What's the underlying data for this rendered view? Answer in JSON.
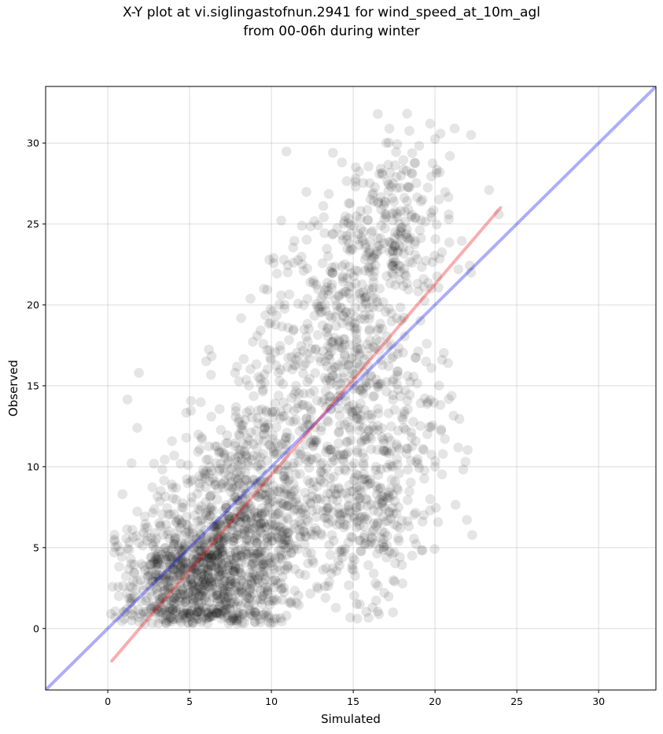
{
  "chart_data": {
    "type": "scatter",
    "title_line1": "X-Y plot at vi.siglingastofnun.2941 for wind_speed_at_10m_agl",
    "title_line2": "from 00-06h during winter",
    "xlabel": "Simulated",
    "ylabel": "Observed",
    "xlim": [
      -3.8,
      33.5
    ],
    "ylim": [
      -3.8,
      33.5
    ],
    "xticks": [
      0,
      5,
      10,
      15,
      20,
      25,
      30
    ],
    "yticks": [
      0,
      5,
      10,
      15,
      20,
      25,
      30
    ],
    "grid": true,
    "point_color": "#000000",
    "point_alpha": 0.1,
    "point_count": 2600,
    "identity_line": {
      "color": "#0000ee",
      "alpha": 0.32,
      "x": [
        -3.8,
        33.5
      ],
      "y": [
        -3.8,
        33.5
      ]
    },
    "fit_line": {
      "color": "#ee0000",
      "alpha": 0.32,
      "x": [
        0.25,
        24.0
      ],
      "y": [
        -2.0,
        26.0
      ]
    },
    "clusters": [
      {
        "cx": 6.0,
        "cy": 2.5,
        "sx": 2.2,
        "sy": 1.8,
        "n": 560
      },
      {
        "cx": 8.0,
        "cy": 6.0,
        "sx": 2.5,
        "sy": 2.5,
        "n": 520
      },
      {
        "cx": 10.0,
        "cy": 10.0,
        "sx": 2.8,
        "sy": 3.5,
        "n": 380
      },
      {
        "cx": 14.0,
        "cy": 18.5,
        "sx": 2.3,
        "sy": 3.5,
        "n": 380
      },
      {
        "cx": 17.5,
        "cy": 25.0,
        "sx": 1.8,
        "sy": 2.8,
        "n": 230
      },
      {
        "cx": 15.5,
        "cy": 6.5,
        "sx": 1.8,
        "sy": 2.6,
        "n": 220
      },
      {
        "cx": 17.5,
        "cy": 12.0,
        "sx": 2.0,
        "sy": 3.0,
        "n": 170
      },
      {
        "cx": 3.0,
        "cy": 3.0,
        "sx": 1.3,
        "sy": 2.0,
        "n": 140
      }
    ],
    "points": [
      {
        "x": 1.8,
        "y": 12.4
      },
      {
        "x": 1.9,
        "y": 15.8
      },
      {
        "x": 0.9,
        "y": 8.3
      },
      {
        "x": 16.5,
        "y": 31.8
      },
      {
        "x": 19.7,
        "y": 31.2
      },
      {
        "x": 21.2,
        "y": 30.9
      },
      {
        "x": 22.2,
        "y": 30.5
      },
      {
        "x": 20.8,
        "y": 16.4
      },
      {
        "x": 20.0,
        "y": 10.0
      },
      {
        "x": 19.7,
        "y": 7.3
      },
      {
        "x": 15.4,
        "y": 1.5
      },
      {
        "x": 16.9,
        "y": 2.2
      },
      {
        "x": 23.3,
        "y": 27.1
      },
      {
        "x": 23.9,
        "y": 25.6
      },
      {
        "x": 0.2,
        "y": 0.9
      },
      {
        "x": 0.4,
        "y": 4.7
      },
      {
        "x": 1.5,
        "y": 6.1
      },
      {
        "x": 4.9,
        "y": 10.1
      },
      {
        "x": 9.0,
        "y": 0.4
      },
      {
        "x": 10.2,
        "y": 0.6
      },
      {
        "x": 22.2,
        "y": 22.0
      },
      {
        "x": 19.5,
        "y": 17.6
      },
      {
        "x": 18.6,
        "y": 4.5
      }
    ]
  }
}
